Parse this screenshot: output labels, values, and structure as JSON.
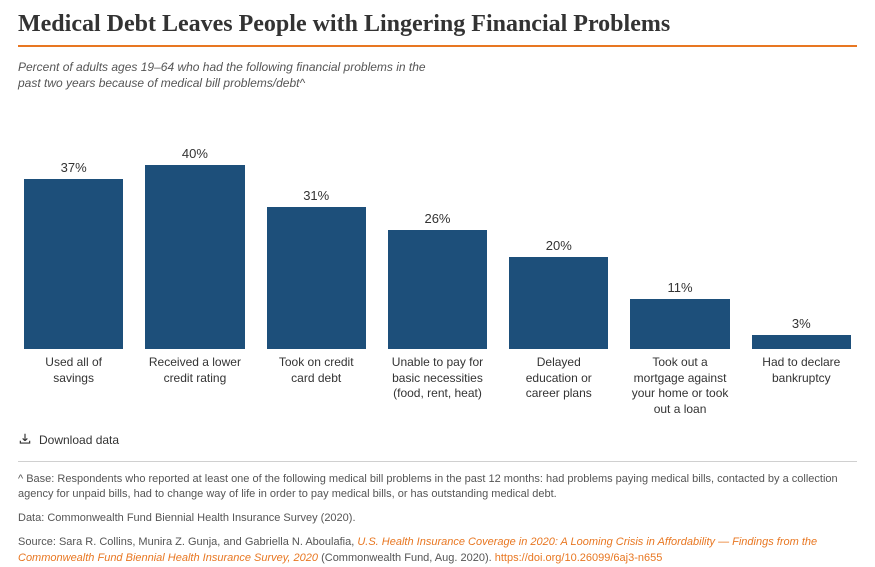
{
  "title": "Medical Debt Leaves People with Lingering Financial Problems",
  "subtitle": "Percent of adults ages 19–64 who had the following financial problems in the past two years because of medical bill problems/debt^",
  "rule_color": "#e87722",
  "chart": {
    "type": "bar",
    "bar_color": "#1d4f7a",
    "value_suffix": "%",
    "ymax": 50,
    "label_fontsize": 12,
    "value_fontsize": 13,
    "background_color": "#ffffff",
    "categories": [
      "Used all of savings",
      "Received a lower credit rating",
      "Took on credit card debt",
      "Unable to pay for basic necessities (food, rent, heat)",
      "Delayed education or career plans",
      "Took out a mortgage against your home or took out a loan",
      "Had to declare bankruptcy"
    ],
    "values": [
      37,
      40,
      31,
      26,
      20,
      11,
      3
    ]
  },
  "download_label": "Download data",
  "footnote_caret": "^ Base: Respondents who reported at least one of the following medical bill problems in the past 12 months: had problems paying medical bills, contacted by a collection agency for unpaid bills, had to change way of life in order to pay medical bills, or has outstanding medical debt.",
  "footnote_data": "Data: Commonwealth Fund Biennial Health Insurance Survey (2020).",
  "source": {
    "prefix": "Source: Sara R. Collins, Munira Z. Gunja, and Gabriella N. Aboulafia, ",
    "link_text": "U.S. Health Insurance Coverage in 2020: A Looming Crisis in Affordability — Findings from the Commonwealth Fund Biennial Health Insurance Survey, 2020",
    "mid": " (Commonwealth Fund, Aug. 2020). ",
    "doi": "https://doi.org/10.26099/6aj3-n655"
  },
  "colors": {
    "accent": "#e87722",
    "text": "#333333",
    "muted": "#555555",
    "divider": "#d0d0d0"
  }
}
